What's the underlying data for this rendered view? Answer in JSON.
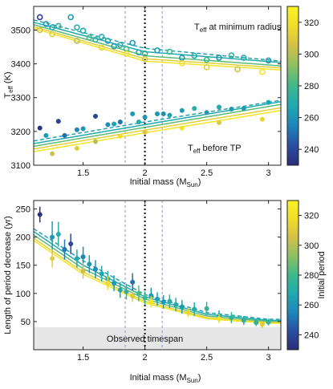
{
  "colormap": {
    "stops": [
      "#2b2d77",
      "#2a4fa0",
      "#1e86b8",
      "#21a9b0",
      "#3fb88a",
      "#8cc063",
      "#d2c04a",
      "#f0dc2a",
      "#fbf324"
    ],
    "range": [
      230,
      330
    ]
  },
  "chart_data": [
    {
      "type": "scatter",
      "title": "",
      "xlabel": "Initial mass (M",
      "xlabel_sub": "Sun",
      "xlabel_end": ")",
      "ylabel": "T",
      "ylabel_sub": "eff",
      "ylabel_end": " (K)",
      "xlim": [
        1.1,
        3.1
      ],
      "ylim": [
        3100,
        3570
      ],
      "xticks": [
        "1.5",
        "2",
        "2.5",
        "3"
      ],
      "yticks": [
        "3100",
        "3200",
        "3300",
        "3400",
        "3500"
      ],
      "vlines": {
        "dashed_gray": [
          1.84,
          2.14
        ],
        "dotted_black": [
          2.0
        ]
      },
      "annotations": [
        {
          "text": "T",
          "sub": "eff",
          "rest": " at minimum radius"
        },
        {
          "text": "T",
          "sub": "eff",
          "rest": " before TP"
        }
      ],
      "colorbar": {
        "ticks": [
          "240",
          "260",
          "280",
          "300",
          "320"
        ],
        "label": ""
      },
      "series": [
        {
          "group": "min_radius",
          "marker": "open-circle",
          "period": [
            238,
            262,
            268,
            275,
            262,
            272,
            268,
            282,
            275,
            268,
            265,
            262,
            272,
            280,
            262,
            268,
            275,
            265,
            278,
            262,
            270,
            278,
            262,
            274,
            268,
            262
          ],
          "x": [
            1.15,
            1.2,
            1.25,
            1.3,
            1.4,
            1.45,
            1.5,
            1.55,
            1.6,
            1.65,
            1.7,
            1.75,
            1.8,
            1.85,
            1.9,
            1.95,
            2.0,
            2.1,
            2.2,
            2.3,
            2.4,
            2.5,
            2.6,
            2.7,
            2.8,
            3.0
          ],
          "y": [
            3538,
            3518,
            3508,
            3512,
            3538,
            3508,
            3498,
            3478,
            3472,
            3480,
            3468,
            3452,
            3456,
            3444,
            3462,
            3434,
            3430,
            3440,
            3436,
            3418,
            3424,
            3412,
            3418,
            3425,
            3418,
            3410
          ]
        },
        {
          "group": "min_radius",
          "marker": "open-circle-yellow",
          "period": [
            305,
            310,
            300,
            315,
            320,
            308,
            318,
            312,
            305,
            322
          ],
          "x": [
            1.15,
            1.25,
            1.45,
            1.65,
            1.85,
            2.0,
            2.3,
            2.5,
            2.75,
            2.95
          ],
          "y": [
            3500,
            3488,
            3468,
            3448,
            3430,
            3414,
            3402,
            3390,
            3384,
            3376
          ]
        },
        {
          "group": "before_tp",
          "marker": "filled-circle",
          "period": [
            232,
            262,
            238,
            250,
            255,
            260,
            240,
            258,
            265,
            250,
            262,
            270,
            262,
            262,
            258,
            266,
            262,
            270,
            262,
            268,
            262,
            262,
            265
          ],
          "x": [
            1.15,
            1.2,
            1.3,
            1.35,
            1.45,
            1.5,
            1.6,
            1.7,
            1.75,
            1.8,
            1.9,
            1.95,
            2.0,
            2.1,
            2.15,
            2.2,
            2.3,
            2.4,
            2.5,
            2.6,
            2.7,
            2.8,
            3.0
          ],
          "y": [
            3210,
            3188,
            3230,
            3188,
            3205,
            3208,
            3245,
            3220,
            3222,
            3228,
            3252,
            3228,
            3242,
            3252,
            3252,
            3248,
            3262,
            3268,
            3256,
            3272,
            3266,
            3268,
            3286
          ]
        },
        {
          "group": "before_tp",
          "marker": "filled-circle-yellow",
          "period": [
            305,
            312,
            300,
            318,
            308,
            322,
            310,
            315
          ],
          "x": [
            1.25,
            1.45,
            1.6,
            1.8,
            2.0,
            2.3,
            2.6,
            2.95
          ],
          "y": [
            3134,
            3150,
            3170,
            3186,
            3198,
            3210,
            3226,
            3236
          ]
        }
      ],
      "model_curves": {
        "min_radius": [
          {
            "period": 265,
            "style": "dashed",
            "y_at_x": [
              [
                1.1,
                3530
              ],
              [
                2.0,
                3446
              ],
              [
                3.1,
                3408
              ]
            ]
          },
          {
            "period": 268,
            "style": "solid",
            "y_at_x": [
              [
                1.1,
                3523
              ],
              [
                2.0,
                3436
              ],
              [
                3.1,
                3404
              ]
            ]
          },
          {
            "period": 285,
            "style": "solid",
            "y_at_x": [
              [
                1.1,
                3516
              ],
              [
                2.0,
                3424
              ],
              [
                3.1,
                3394
              ]
            ]
          },
          {
            "period": 312,
            "style": "solid",
            "y_at_x": [
              [
                1.1,
                3510
              ],
              [
                2.0,
                3415
              ],
              [
                3.1,
                3388
              ]
            ]
          },
          {
            "period": 322,
            "style": "solid",
            "y_at_x": [
              [
                1.1,
                3505
              ],
              [
                2.0,
                3408
              ],
              [
                3.1,
                3382
              ]
            ]
          }
        ],
        "before_tp": [
          {
            "period": 265,
            "style": "dashed",
            "y_at_x": [
              [
                1.1,
                3172
              ],
              [
                2.0,
                3228
              ],
              [
                3.1,
                3292
              ]
            ]
          },
          {
            "period": 268,
            "style": "solid",
            "y_at_x": [
              [
                1.1,
                3164
              ],
              [
                2.0,
                3220
              ],
              [
                3.1,
                3288
              ]
            ]
          },
          {
            "period": 285,
            "style": "solid",
            "y_at_x": [
              [
                1.1,
                3156
              ],
              [
                2.0,
                3212
              ],
              [
                3.1,
                3280
              ]
            ]
          },
          {
            "period": 312,
            "style": "solid",
            "y_at_x": [
              [
                1.1,
                3148
              ],
              [
                2.0,
                3204
              ],
              [
                3.1,
                3270
              ]
            ]
          },
          {
            "period": 322,
            "style": "solid",
            "y_at_x": [
              [
                1.1,
                3140
              ],
              [
                2.0,
                3196
              ],
              [
                3.1,
                3262
              ]
            ]
          }
        ]
      }
    },
    {
      "type": "scatter",
      "title": "",
      "xlabel": "Initial mass (M",
      "xlabel_sub": "Sun",
      "xlabel_end": ")",
      "ylabel": "Length of period decrease (yr)",
      "xlim": [
        1.1,
        3.1
      ],
      "ylim": [
        0,
        265
      ],
      "xticks": [
        "1.5",
        "2",
        "2.5",
        "3"
      ],
      "yticks": [
        "50",
        "100",
        "150",
        "200",
        "250"
      ],
      "vlines": {
        "dashed_gray": [
          1.84,
          2.14
        ],
        "dotted_black": [
          2.0
        ]
      },
      "shaded_band": {
        "y0": 0,
        "y1": 40,
        "label": "Observed timespan"
      },
      "colorbar": {
        "ticks": [
          "240",
          "260",
          "280",
          "300",
          "320"
        ],
        "label": "Initial period"
      },
      "points": {
        "x": [
          1.15,
          1.25,
          1.3,
          1.35,
          1.4,
          1.45,
          1.5,
          1.55,
          1.6,
          1.65,
          1.7,
          1.75,
          1.8,
          1.85,
          1.9,
          1.95,
          2.0,
          2.05,
          2.1,
          2.15,
          2.2,
          2.25,
          2.3,
          2.4,
          2.5,
          2.6,
          2.7,
          2.8,
          2.9,
          3.0,
          1.25,
          1.5,
          1.7,
          1.9,
          2.05,
          2.35,
          2.6,
          2.95
        ],
        "y": [
          240,
          200,
          205,
          178,
          188,
          162,
          165,
          152,
          143,
          135,
          126,
          118,
          106,
          103,
          120,
          100,
          92,
          96,
          90,
          85,
          86,
          80,
          76,
          72,
          73,
          60,
          57,
          52,
          48,
          49,
          162,
          140,
          118,
          95,
          85,
          66,
          55,
          45
        ],
        "err": [
          14,
          28,
          22,
          18,
          18,
          16,
          18,
          16,
          16,
          14,
          14,
          14,
          14,
          14,
          16,
          14,
          12,
          14,
          12,
          12,
          12,
          12,
          12,
          12,
          12,
          10,
          10,
          8,
          6,
          6,
          16,
          14,
          12,
          10,
          10,
          8,
          8,
          6
        ],
        "period": [
          232,
          262,
          270,
          252,
          240,
          268,
          255,
          262,
          258,
          266,
          270,
          262,
          268,
          275,
          250,
          282,
          278,
          260,
          265,
          262,
          272,
          268,
          262,
          270,
          276,
          268,
          275,
          272,
          275,
          278,
          312,
          305,
          318,
          310,
          322,
          315,
          320,
          312
        ]
      },
      "model_curves": [
        {
          "period": 265,
          "style": "dashed",
          "y_at_x": [
            [
              1.1,
              215
            ],
            [
              1.5,
              158
            ],
            [
              2.0,
              98
            ],
            [
              2.5,
              66
            ],
            [
              3.0,
              54
            ],
            [
              3.1,
              54
            ]
          ]
        },
        {
          "period": 268,
          "style": "solid",
          "y_at_x": [
            [
              1.1,
              210
            ],
            [
              1.5,
              150
            ],
            [
              2.0,
              94
            ],
            [
              2.5,
              63
            ],
            [
              3.0,
              52
            ],
            [
              3.1,
              52
            ]
          ]
        },
        {
          "period": 285,
          "style": "solid",
          "y_at_x": [
            [
              1.1,
              204
            ],
            [
              1.5,
              144
            ],
            [
              2.0,
              90
            ],
            [
              2.5,
              60
            ],
            [
              3.0,
              50
            ],
            [
              3.1,
              50
            ]
          ]
        },
        {
          "period": 312,
          "style": "solid",
          "y_at_x": [
            [
              1.1,
              198
            ],
            [
              1.5,
              138
            ],
            [
              2.0,
              86
            ],
            [
              2.5,
              57
            ],
            [
              3.0,
              48
            ],
            [
              3.1,
              48
            ]
          ]
        },
        {
          "period": 322,
          "style": "solid",
          "y_at_x": [
            [
              1.1,
              194
            ],
            [
              1.5,
              134
            ],
            [
              2.0,
              83
            ],
            [
              2.5,
              55
            ],
            [
              3.0,
              47
            ],
            [
              3.1,
              47
            ]
          ]
        }
      ]
    }
  ]
}
